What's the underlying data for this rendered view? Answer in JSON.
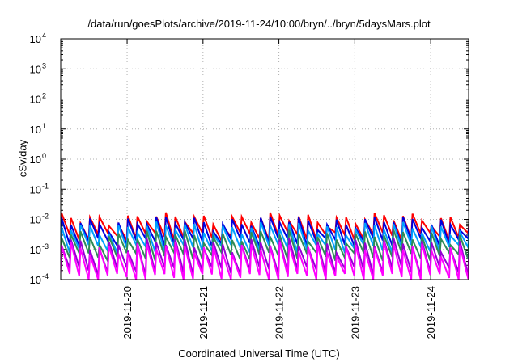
{
  "chart_data": {
    "type": "line",
    "title": "/data/run/goesPlots/archive/2019-11-24/10:00/bryn/../bryn/5daysMars.plot",
    "xlabel": "Coordinated Universal Time (UTC)",
    "ylabel": "cSv/day",
    "x_ticks": [
      "2019-11-20",
      "2019-11-21",
      "2019-11-22",
      "2019-11-23",
      "2019-11-24"
    ],
    "x_range": [
      "2019-11-19 03:00",
      "2019-11-24 12:00"
    ],
    "y_scale": "log",
    "ylim": [
      0.0001,
      10000
    ],
    "y_ticks": [
      {
        "base": "10",
        "exp": "-4"
      },
      {
        "base": "10",
        "exp": "-3"
      },
      {
        "base": "10",
        "exp": "-2"
      },
      {
        "base": "10",
        "exp": "-1"
      },
      {
        "base": "10",
        "exp": "0"
      },
      {
        "base": "10",
        "exp": "1"
      },
      {
        "base": "10",
        "exp": "2"
      },
      {
        "base": "10",
        "exp": "3"
      },
      {
        "base": "10",
        "exp": "4"
      }
    ],
    "grid": true,
    "cycle_hours": 3,
    "series": [
      {
        "color": "#ff0000",
        "peak": 0.011,
        "trough": 0.0028
      },
      {
        "color": "#0000dd",
        "peak": 0.0085,
        "trough": 0.0018
      },
      {
        "color": "#00a0ff",
        "peak": 0.0055,
        "trough": 0.0011
      },
      {
        "color": "#2e8b57",
        "peak": 0.003,
        "trough": 0.0006
      },
      {
        "color": "#9400d3",
        "peak": 0.0016,
        "trough": 0.0002
      },
      {
        "color": "#ff00ff",
        "peak": 0.0012,
        "trough": 0.00012
      }
    ]
  }
}
